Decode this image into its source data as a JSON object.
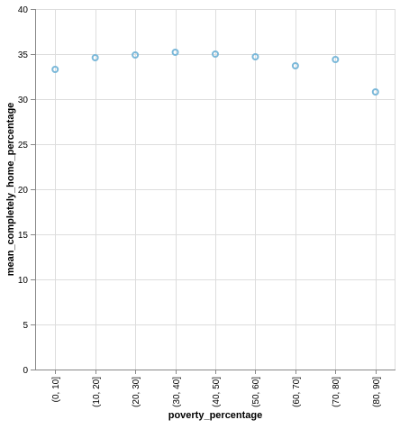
{
  "chart_data": {
    "type": "scatter",
    "title": "",
    "xlabel": "poverty_percentage",
    "ylabel": "mean_completely_home_percentage",
    "categories": [
      "(0, 10]",
      "(10, 20]",
      "(20, 30]",
      "(30, 40]",
      "(40, 50]",
      "(50, 60]",
      "(60, 70]",
      "(70, 80]",
      "(80, 90]"
    ],
    "series": [
      {
        "values": [
          33.3,
          34.6,
          34.9,
          35.2,
          35.0,
          34.7,
          33.7,
          34.4,
          30.8
        ]
      }
    ],
    "ylim": [
      0,
      40
    ],
    "yticks": [
      0,
      5,
      10,
      15,
      20,
      25,
      30,
      35,
      40
    ],
    "grid": true,
    "legend": "none",
    "colors": {
      "point_stroke": "#7ab8d9",
      "grid": "#dddddd",
      "axis": "#888888"
    }
  }
}
